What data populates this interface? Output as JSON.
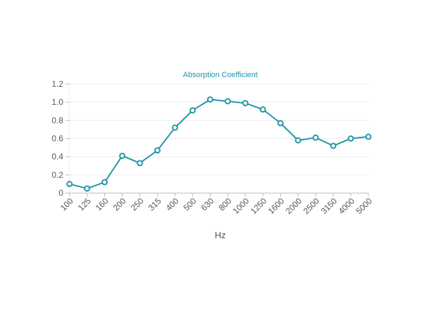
{
  "chart_data": {
    "type": "line",
    "title": "Absorption Coefficient",
    "xlabel": "Hz",
    "ylabel": "",
    "categories": [
      "100",
      "125",
      "160",
      "200",
      "250",
      "315",
      "400",
      "500",
      "630",
      "800",
      "1000",
      "1250",
      "1600",
      "2000",
      "2500",
      "3150",
      "4000",
      "5000"
    ],
    "series": [
      {
        "values": [
          0.1,
          0.05,
          0.12,
          0.41,
          0.33,
          0.47,
          0.72,
          0.91,
          1.03,
          1.01,
          0.99,
          0.92,
          0.77,
          0.58,
          0.61,
          0.52,
          0.6,
          0.62
        ]
      }
    ],
    "ylim": [
      0,
      1.2
    ],
    "yticks": [
      "0",
      "0.2",
      "0.4",
      "0.6",
      "0.8",
      "1.0",
      "1.2"
    ],
    "grid": true,
    "legend": "none",
    "colors": {
      "line": "#2196a6",
      "title": "#2196a6",
      "grid": "#eeeeee",
      "axis": "#bbbbbb",
      "tick_text": "#555555"
    }
  }
}
